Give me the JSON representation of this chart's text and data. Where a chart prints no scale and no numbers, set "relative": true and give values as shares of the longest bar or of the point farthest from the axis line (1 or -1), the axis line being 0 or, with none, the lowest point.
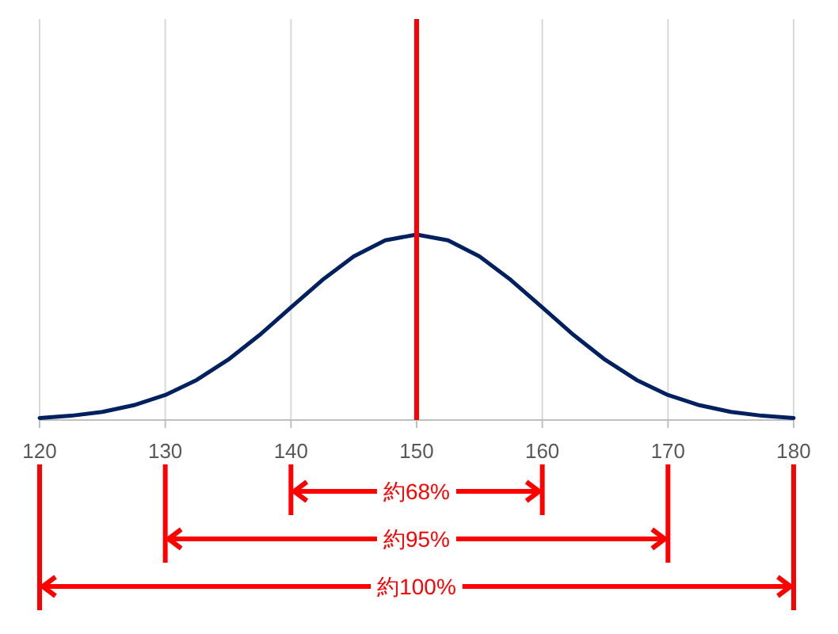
{
  "chart_data": {
    "type": "line",
    "relative": true,
    "x": [
      120,
      122.5,
      125,
      127.5,
      130,
      132.5,
      135,
      137.5,
      140,
      142.5,
      145,
      147.5,
      150,
      152.5,
      155,
      157.5,
      160,
      162.5,
      165,
      167.5,
      170,
      172.5,
      175,
      177.5,
      180
    ],
    "series": [
      {
        "color": "#002060",
        "values": [
          0.011,
          0.023,
          0.044,
          0.08,
          0.135,
          0.216,
          0.325,
          0.458,
          0.607,
          0.755,
          0.882,
          0.969,
          1,
          0.969,
          0.882,
          0.755,
          0.607,
          0.458,
          0.325,
          0.216,
          0.135,
          0.08,
          0.044,
          0.023,
          0.011
        ]
      }
    ],
    "xlim": [
      120,
      180
    ],
    "xticks": [
      120,
      130,
      140,
      150,
      160,
      170,
      180
    ],
    "grid": "x",
    "tick_labels": "x",
    "marker": "none",
    "line_style": "solid",
    "ref_lines": [
      {
        "axis": "x",
        "value": 150,
        "color": "#ff0000"
      }
    ],
    "annotations": [
      "約68%",
      "約95%",
      "約100%"
    ]
  }
}
